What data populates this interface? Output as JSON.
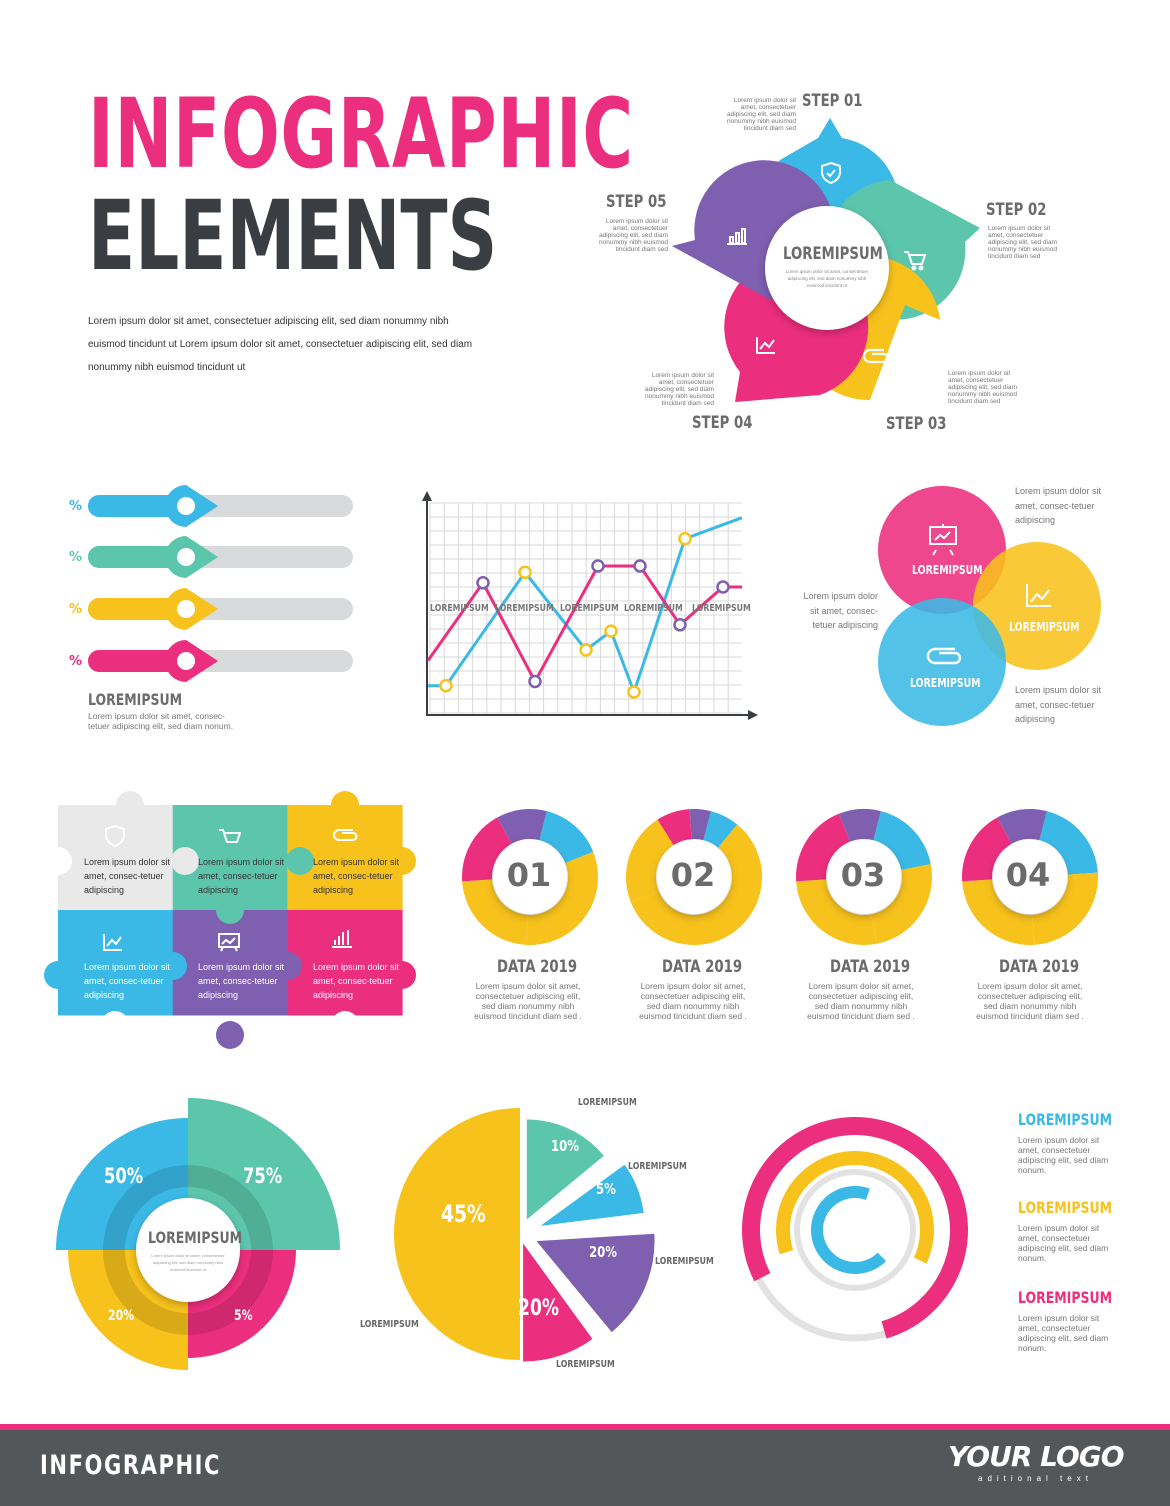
{
  "header": {
    "title_line1": "INFOGRAPHIC",
    "title_line2": "ELEMENTS",
    "intro_text": "Lorem ipsum dolor sit amet, consectetuer adipiscing elit, sed diam nonummy nibh euismod tincidunt ut Lorem ipsum dolor sit amet, consectetuer adipiscing elit, sed diam nonummy nibh euismod tincidunt ut"
  },
  "steps": {
    "center_title": "LOREMIPSUM",
    "center_text": "Lorem ipsum dolor sit amet, consectetuer adipiscing elit, sed diam nonummy nibh euismod tincidunt ut",
    "items": [
      {
        "label": "STEP 01",
        "text": "Lorem ipsum dolor sit amet, consectetuer adipiscing elit, sed diam nonummy nibh euismod tincidunt diam sed",
        "color": "#3bb9e6",
        "icon": "shield-icon"
      },
      {
        "label": "STEP 02",
        "text": "Lorem ipsum dolor sit amet, consectetuer adipiscing elit, sed diam nonummy nibh euismod tincidunt diam sed",
        "color": "#5cc6ac",
        "icon": "cart-icon"
      },
      {
        "label": "STEP 03",
        "text": "Lorem ipsum dolor sit amet, consectetuer adipiscing elit, sed diam nonummy nibh euismod tincidunt diam sed",
        "color": "#f8c21c",
        "icon": "paperclip-icon"
      },
      {
        "label": "STEP 04",
        "text": "Lorem ipsum dolor sit amet, consectetuer adipiscing elit, sed diam nonummy nibh euismod tincidunt diam sed",
        "color": "#ec2e7e",
        "icon": "line-chart-icon"
      },
      {
        "label": "STEP 05",
        "text": "Lorem ipsum dolor sit amet, consectetuer adipiscing elit, sed diam nonummy nibh euismod tincidunt diam sed",
        "color": "#7e5fb0",
        "icon": "bar-chart-icon"
      }
    ]
  },
  "sliders": {
    "items": [
      {
        "label": "%",
        "color": "#3bb9e6",
        "level": 0.37
      },
      {
        "label": "%",
        "color": "#5cc6ac",
        "level": 0.37
      },
      {
        "label": "%",
        "color": "#f8c21c",
        "level": 0.37
      },
      {
        "label": "%",
        "color": "#ec2e7e",
        "level": 0.37
      }
    ],
    "title": "LOREMIPSUM",
    "text": "Lorem ipsum dolor sit amet, consec-tetuer adipiscing elit, sed diam nonum."
  },
  "line_chart": {
    "labels": [
      "LOREMIPSUM",
      "LOREMIPSUM",
      "LOREMIPSUM",
      "LOREMIPSUM",
      "LOREMIPSUM"
    ],
    "pink_series": [
      0.25,
      0.62,
      0.15,
      0.7,
      0.7,
      0.42,
      0.6,
      0.6
    ],
    "blue_series": [
      0.13,
      0.13,
      0.67,
      0.3,
      0.39,
      0.1,
      0.83,
      0.93
    ]
  },
  "venn": {
    "circles": [
      {
        "label": "LOREMIPSUM",
        "color": "#ec2e7e",
        "icon": "presentation-icon"
      },
      {
        "label": "LOREMIPSUM",
        "color": "#f8c21c",
        "icon": "line-chart-icon"
      },
      {
        "label": "LOREMIPSUM",
        "color": "#3bb9e6",
        "icon": "paperclip-icon"
      }
    ],
    "text_top": "Lorem ipsum dolor sit amet, consec-tetuer adipiscing",
    "text_left": "Lorem ipsum dolor sit amet, consec-tetuer adipiscing",
    "text_bottom": "Lorem ipsum dolor sit amet, consec-tetuer adipiscing"
  },
  "puzzle": {
    "pieces": [
      {
        "text": "Lorem ipsum dolor sit amet, consec-tetuer adipiscing",
        "color": "#e9e9ea",
        "icon": "shield-icon"
      },
      {
        "text": "Lorem ipsum dolor sit amet, consec-tetuer adipiscing",
        "color": "#5cc6ac",
        "icon": "cart-icon"
      },
      {
        "text": "Lorem ipsum dolor sit amet, consec-tetuer adipiscing",
        "color": "#f8c21c",
        "icon": "paperclip-icon"
      },
      {
        "text": "Lorem ipsum dolor sit amet, consec-tetuer adipiscing",
        "color": "#3bb9e6",
        "icon": "line-chart-icon"
      },
      {
        "text": "Lorem ipsum dolor sit amet, consec-tetuer adipiscing",
        "color": "#7e5fb0",
        "icon": "presentation-icon"
      },
      {
        "text": "Lorem ipsum dolor sit amet, consec-tetuer adipiscing",
        "color": "#ec2e7e",
        "icon": "bar-chart-icon"
      }
    ]
  },
  "donuts": [
    {
      "number": "01",
      "title": "DATA 2019",
      "text": "Lorem ipsum dolor sit amet, consectetuer adipiscing elit, sed diam nonummy nibh euismod tincidunt diam sed .",
      "shares": [
        0.15,
        0.32,
        0.23,
        0.18,
        0.12
      ]
    },
    {
      "number": "02",
      "title": "DATA 2019",
      "text": "Lorem ipsum dolor sit amet, consectetuer adipiscing elit, sed diam nonummy nibh euismod tincidunt diam sed .",
      "shares": [
        0.07,
        0.58,
        0.22,
        0.08,
        0.05
      ]
    },
    {
      "number": "03",
      "title": "DATA 2019",
      "text": "Lorem ipsum dolor sit amet, consectetuer adipiscing elit, sed diam nonummy nibh euismod tincidunt diam sed .",
      "shares": [
        0.18,
        0.25,
        0.27,
        0.2,
        0.1
      ]
    },
    {
      "number": "04",
      "title": "DATA 2019",
      "text": "Lorem ipsum dolor sit amet, consectetuer adipiscing elit, sed diam nonummy nibh euismod tincidunt diam sed .",
      "shares": [
        0.2,
        0.25,
        0.25,
        0.18,
        0.12
      ]
    }
  ],
  "quarter_chart": {
    "center": "LOREMIPSUM",
    "segments": [
      {
        "value": "50%",
        "color": "#3bb9e6"
      },
      {
        "value": "75%",
        "color": "#5cc6ac"
      },
      {
        "value": "20%",
        "color": "#f8c21c"
      },
      {
        "value": "5%",
        "color": "#ec2e7e"
      }
    ]
  },
  "pie": {
    "slices": [
      {
        "value": "45%",
        "color": "#f8c21c",
        "label": "LOREMIPSUM"
      },
      {
        "value": "10%",
        "color": "#5cc6ac",
        "label": "LOREMIPSUM"
      },
      {
        "value": "5%",
        "color": "#3bb9e6",
        "label": "LOREMIPSUM"
      },
      {
        "value": "20%",
        "color": "#7e5fb0",
        "label": "LOREMIPSUM"
      },
      {
        "value": "20%",
        "color": "#ec2e7e",
        "label": "LOREMIPSUM"
      }
    ]
  },
  "rings": {
    "arcs": [
      0.68,
      0.62,
      0.78
    ],
    "legend": [
      {
        "title": "LOREMIPSUM",
        "text": "Lorem ipsum dolor sit amet, consectetuer adipiscing elit, sed diam nonum.",
        "color": "#3bb9e6"
      },
      {
        "title": "LOREMIPSUM",
        "text": "Lorem ipsum dolor sit amet, consectetuer adipiscing elit, sed diam nonum.",
        "color": "#f8c21c"
      },
      {
        "title": "LOREMIPSUM",
        "text": "Lorem ipsum dolor sit amet, consectetuer adipiscing elit, sed diam nonum.",
        "color": "#ec2e7e"
      }
    ]
  },
  "footer": {
    "label": "INFOGRAPHIC",
    "logo": "YOUR LOGO",
    "logo_sub": "aditional text"
  }
}
